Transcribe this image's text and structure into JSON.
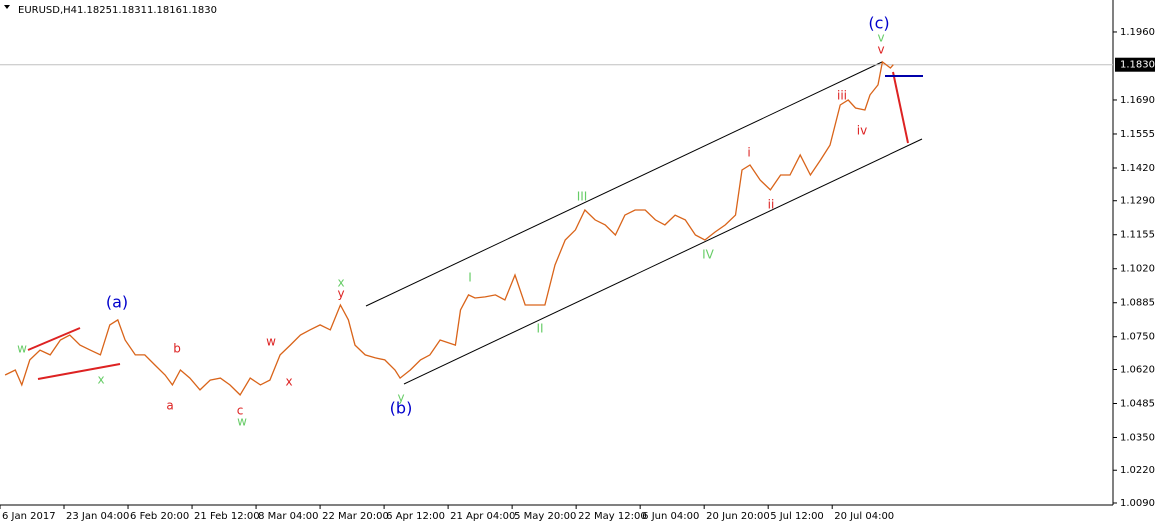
{
  "chart_data": {
    "type": "line",
    "title": "EURUSD,H4",
    "ohlc": [
      "1.1825",
      "1.1831",
      "1.1816",
      "1.1830"
    ],
    "x": [
      7,
      21,
      30,
      41,
      55,
      69,
      83,
      96,
      110,
      124,
      138,
      151,
      162,
      172,
      186,
      199,
      213,
      227,
      237,
      248,
      261,
      275,
      289,
      303,
      316,
      330,
      344,
      358,
      371,
      385,
      399,
      413,
      426,
      440,
      454,
      468,
      479,
      488,
      502,
      516,
      529,
      543,
      550,
      564,
      578,
      591,
      605,
      626,
      633,
      644,
      653,
      667,
      681,
      694,
      708,
      722,
      736,
      749,
      763,
      777,
      791,
      804,
      818,
      832,
      846,
      859,
      873,
      887,
      901,
      914,
      928,
      942,
      956,
      969,
      983,
      997,
      1011,
      1020,
      1031,
      1045,
      1059,
      1073,
      1086,
      1100,
      1114,
      1128,
      1141,
      1155,
      1166,
      1176,
      1189,
      1196,
      1207,
      1213,
      1224,
      1228
    ],
    "series": [
      {
        "name": "EURUSD,H4",
        "color": "#d9641a",
        "values": [
          1.0598,
          1.0618,
          1.0559,
          1.0658,
          1.0697,
          1.0678,
          1.0737,
          1.0757,
          1.0717,
          1.0697,
          1.0678,
          1.0797,
          1.0817,
          1.0737,
          1.0678,
          1.0678,
          1.0638,
          1.0598,
          1.0559,
          1.0618,
          1.0586,
          1.0539,
          1.0578,
          1.0586,
          1.0559,
          1.0519,
          1.0586,
          1.0559,
          1.0578,
          1.0678,
          1.0717,
          1.0757,
          1.0777,
          1.0797,
          1.0777,
          1.0876,
          1.0817,
          1.0717,
          1.0678,
          1.0666,
          1.0658,
          1.0618,
          1.0586,
          1.0618,
          1.0658,
          1.0678,
          1.0737,
          1.0717,
          1.0856,
          1.0916,
          1.0904,
          1.0908,
          1.0916,
          1.0896,
          1.0995,
          1.0876,
          1.0876,
          1.0876,
          1.1035,
          1.1134,
          1.1174,
          1.1253,
          1.1214,
          1.1194,
          1.1154,
          1.1233,
          1.1253,
          1.1253,
          1.1214,
          1.1194,
          1.1233,
          1.1214,
          1.1154,
          1.1134,
          1.1166,
          1.1194,
          1.1233,
          1.1412,
          1.1432,
          1.1372,
          1.1333,
          1.1392,
          1.1392,
          1.1472,
          1.1392,
          1.1452,
          1.1511,
          1.167,
          1.169,
          1.1658,
          1.165,
          1.171,
          1.175,
          1.1841,
          1.1817,
          1.183
        ]
      }
    ],
    "xlim": [
      0,
      1530
    ],
    "xticks": [
      {
        "value": 0,
        "label": "6 Jan 2017"
      },
      {
        "value": 88,
        "label": "23 Jan 04:00"
      },
      {
        "value": 176,
        "label": "6 Feb 20:00"
      },
      {
        "value": 264,
        "label": "21 Feb 12:00"
      },
      {
        "value": 352,
        "label": "8 Mar 04:00"
      },
      {
        "value": 440,
        "label": "22 Mar 20:00"
      },
      {
        "value": 528,
        "label": "6 Apr 12:00"
      },
      {
        "value": 616,
        "label": "21 Apr 04:00"
      },
      {
        "value": 704,
        "label": "5 May 20:00"
      },
      {
        "value": 792,
        "label": "22 May 12:00"
      },
      {
        "value": 880,
        "label": "6 Jun 04:00"
      },
      {
        "value": 968,
        "label": "20 Jun 20:00"
      },
      {
        "value": 1056,
        "label": "5 Jul 12:00"
      },
      {
        "value": 1144,
        "label": "20 Jul 04:00"
      }
    ],
    "ylim": [
      1.0082,
      1.2075
    ],
    "yticks": [
      {
        "value": 1.196,
        "label": "1.1960"
      },
      {
        "value": 1.169,
        "label": "1.1690"
      },
      {
        "value": 1.1555,
        "label": "1.1555"
      },
      {
        "value": 1.142,
        "label": "1.1420"
      },
      {
        "value": 1.129,
        "label": "1.1290"
      },
      {
        "value": 1.1155,
        "label": "1.1155"
      },
      {
        "value": 1.102,
        "label": "1.1020"
      },
      {
        "value": 1.0885,
        "label": "1.0885"
      },
      {
        "value": 1.075,
        "label": "1.0750"
      },
      {
        "value": 1.062,
        "label": "1.0620"
      },
      {
        "value": 1.0485,
        "label": "1.0485"
      },
      {
        "value": 1.035,
        "label": "1.0350"
      },
      {
        "value": 1.022,
        "label": "1.0220"
      },
      {
        "value": 1.009,
        "label": "1.0090"
      }
    ],
    "current_price": {
      "value": 1.183,
      "label": "1.1830"
    },
    "annotations": [
      {
        "text": "(a)",
        "color": "#0000cc"
      },
      {
        "text": "(b)",
        "color": "#0000cc"
      },
      {
        "text": "(c)",
        "color": "#0000cc"
      },
      {
        "text": "w",
        "color": "#66cc66"
      },
      {
        "text": "x",
        "color": "#66cc66"
      },
      {
        "text": "w",
        "color": "#66cc66"
      },
      {
        "text": "x",
        "color": "#66cc66"
      },
      {
        "text": "y",
        "color": "#66cc66"
      },
      {
        "text": "v",
        "color": "#66cc66"
      },
      {
        "text": "I",
        "color": "#66cc66"
      },
      {
        "text": "II",
        "color": "#66cc66"
      },
      {
        "text": "III",
        "color": "#66cc66"
      },
      {
        "text": "IV",
        "color": "#66cc66"
      },
      {
        "text": "a",
        "color": "#dd2222"
      },
      {
        "text": "b",
        "color": "#dd2222"
      },
      {
        "text": "c",
        "color": "#dd2222"
      },
      {
        "text": "w",
        "color": "#dd2222"
      },
      {
        "text": "x",
        "color": "#dd2222"
      },
      {
        "text": "y",
        "color": "#dd2222"
      },
      {
        "text": "i",
        "color": "#dd2222"
      },
      {
        "text": "ii",
        "color": "#dd2222"
      },
      {
        "text": "iii",
        "color": "#dd2222"
      },
      {
        "text": "iv",
        "color": "#dd2222"
      },
      {
        "text": "v",
        "color": "#dd2222"
      }
    ]
  }
}
